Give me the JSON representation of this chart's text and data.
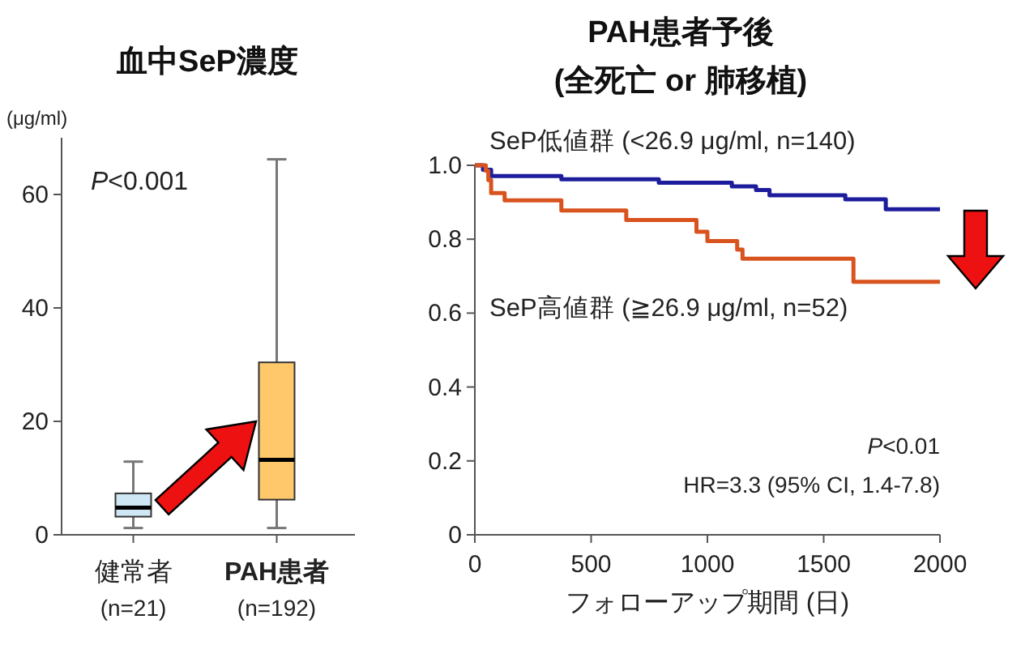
{
  "chart_data": [
    {
      "type": "box",
      "title": "血中SeP濃度",
      "ylabel": "(μg/ml)",
      "categories": [
        "健常者 (n=21)",
        "**PAH患者** (n=192)"
      ],
      "colors": [
        "#cfe6f5",
        "#ffc96b"
      ],
      "boxes": [
        {
          "low": 1.2,
          "q1": 3.2,
          "median": 4.8,
          "q3": 7.3,
          "high": 12.9
        },
        {
          "low": 1.2,
          "q1": 6.2,
          "median": 13.2,
          "q3": 30.4,
          "high": 66.2
        }
      ],
      "ylim": [
        0,
        70
      ],
      "yticks": [
        0,
        20,
        40,
        60
      ],
      "annotations": [
        "*P*<0.001"
      ]
    },
    {
      "type": "step",
      "title": "PAH患者予後",
      "subtitle": "(全死亡 or 肺移植)",
      "xlabel": "フォローアップ期間 (日)",
      "series": [
        {
          "name": "SeP低値群 (<26.9 μg/ml, n=140)",
          "color": "#1c1c9c",
          "x": [
            0,
            35,
            70,
            372,
            791,
            1105,
            1209,
            1267,
            1593,
            1767,
            2000
          ],
          "values": [
            1.0,
            0.988,
            0.971,
            0.962,
            0.953,
            0.943,
            0.933,
            0.919,
            0.908,
            0.881,
            0.881
          ]
        },
        {
          "name": "SeP高値群 (≧26.9 μg/ml, n=52)",
          "color": "#d9531e",
          "x": [
            0,
            47,
            58,
            70,
            128,
            372,
            651,
            953,
            1000,
            1128,
            1151,
            1628,
            2000
          ],
          "values": [
            1.0,
            0.985,
            0.96,
            0.925,
            0.905,
            0.878,
            0.852,
            0.82,
            0.795,
            0.772,
            0.747,
            0.685,
            0.685
          ]
        }
      ],
      "xlim": [
        0,
        2000
      ],
      "xticks": [
        0,
        500,
        1000,
        1500,
        2000
      ],
      "ylim": [
        0,
        1
      ],
      "yticks": [
        0,
        0.2,
        0.4,
        0.6,
        0.8,
        {
          "value": 1,
          "label": "1.0"
        }
      ],
      "annotations": [
        "*P*<0.01",
        "HR=3.3 (95% CI, 1.4-7.8)"
      ]
    }
  ]
}
